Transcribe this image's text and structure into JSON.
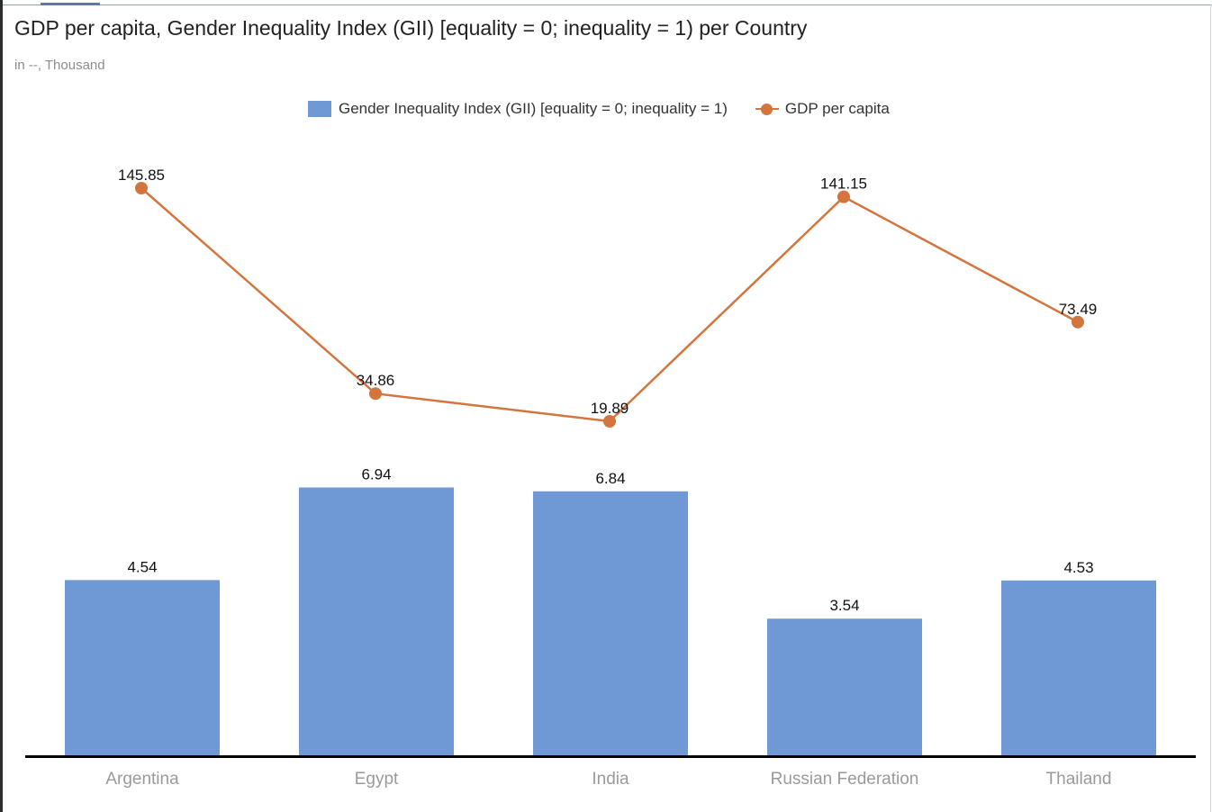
{
  "chart_data": {
    "type": "bar",
    "title": "GDP per capita, Gender Inequality Index (GII) [equality = 0; inequality = 1) per Country",
    "subtitle": "in --, Thousand",
    "categories": [
      "Argentina",
      "Egypt",
      "India",
      "Russian Federation",
      "Thailand"
    ],
    "series": [
      {
        "name": "Gender Inequality Index (GII) [equality = 0; inequality = 1)",
        "type": "bar",
        "color": "#6f99d4",
        "values": [
          4.54,
          6.94,
          6.84,
          3.54,
          4.53
        ],
        "labels": [
          "4.54",
          "6.94",
          "6.84",
          "3.54",
          "4.53"
        ]
      },
      {
        "name": "GDP per capita",
        "type": "line",
        "color": "#d2753f",
        "values": [
          145.85,
          34.86,
          19.89,
          141.15,
          73.49
        ],
        "labels": [
          "145.85",
          "34.86",
          "19.89",
          "141.15",
          "73.49"
        ]
      }
    ],
    "legend": {
      "position": "top",
      "bar_label": "Gender Inequality Index (GII) [equality = 0; inequality = 1)",
      "line_label": "GDP per capita"
    },
    "grid": false
  }
}
